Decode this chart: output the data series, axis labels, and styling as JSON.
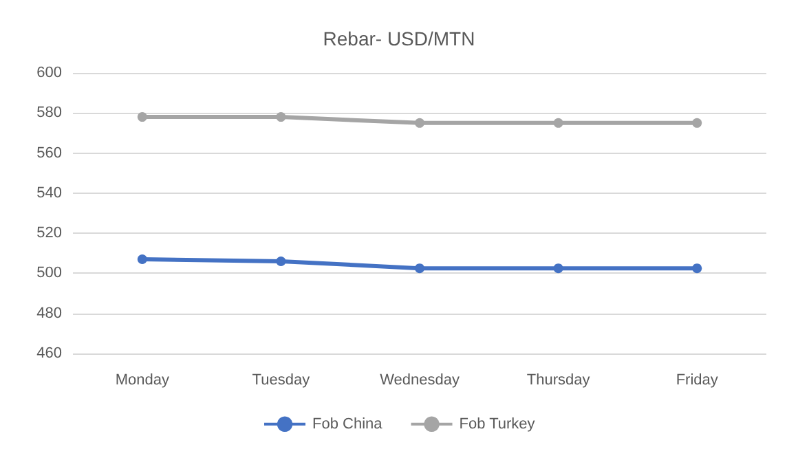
{
  "chart_data": {
    "type": "line",
    "title": "Rebar- USD/MTN",
    "categories": [
      "Monday",
      "Tuesday",
      "Wednesday",
      "Thursday",
      "Friday"
    ],
    "series": [
      {
        "name": "Fob China",
        "color": "#4472c4",
        "values": [
          507,
          506,
          502.5,
          502.5,
          502.5
        ]
      },
      {
        "name": "Fob Turkey",
        "color": "#a5a5a5",
        "values": [
          578,
          578,
          575,
          575,
          575
        ]
      }
    ],
    "ylim": [
      460,
      600
    ],
    "yticks": [
      460,
      480,
      500,
      520,
      540,
      560,
      580,
      600
    ],
    "grid": "y",
    "legend": "bottom",
    "marker": "circle",
    "line_style": "solid"
  }
}
